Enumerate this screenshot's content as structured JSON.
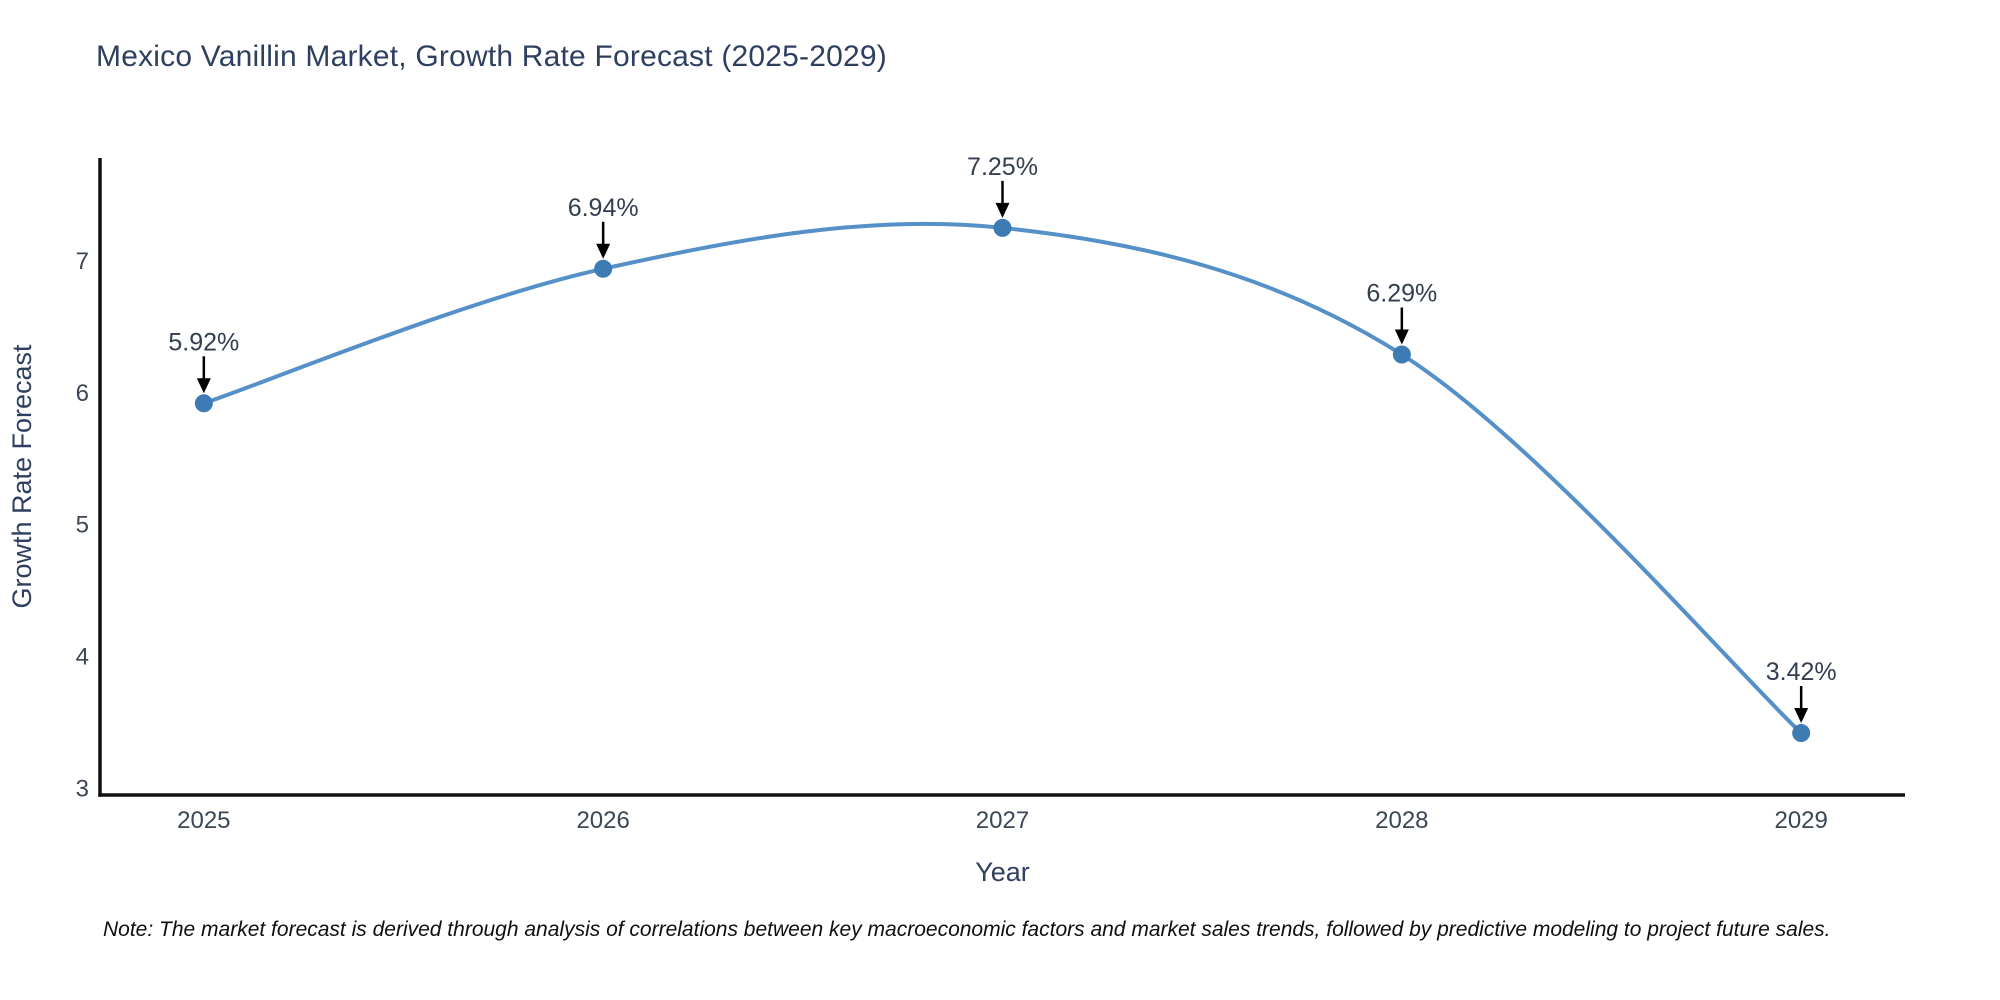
{
  "page": {
    "note": "Note: The market forecast is derived through analysis of correlations between key macroeconomic factors and market sales trends, followed by predictive modeling to project future sales."
  },
  "chart_data": {
    "type": "line",
    "title": "Mexico Vanillin Market, Growth Rate Forecast (2025-2029)",
    "xlabel": "Year",
    "ylabel": "Growth Rate Forecast",
    "x": [
      2025,
      2026,
      2027,
      2028,
      2029
    ],
    "y": [
      5.92,
      6.94,
      7.25,
      6.29,
      3.42
    ],
    "labels": [
      "5.92%",
      "6.94%",
      "7.25%",
      "6.29%",
      "3.42%"
    ],
    "x_ticks": [
      "2025",
      "2026",
      "2027",
      "2028",
      "2029"
    ],
    "y_ticks": [
      3,
      4,
      5,
      6,
      7
    ],
    "xlim": [
      2024.74,
      2029.26
    ],
    "ylim": [
      2.95,
      7.78
    ],
    "line_shape": "spline",
    "grid": false,
    "legend": "none",
    "annotations_style": "value label above point with downward black arrow",
    "colors": {
      "line": "#5590c8",
      "marker": "#3d7bb5",
      "arrow": "#000000",
      "axis": "#111111",
      "title_text": "#2e3f5f",
      "tick_text": "#3b4656",
      "annotation_text": "#333e4f"
    }
  }
}
